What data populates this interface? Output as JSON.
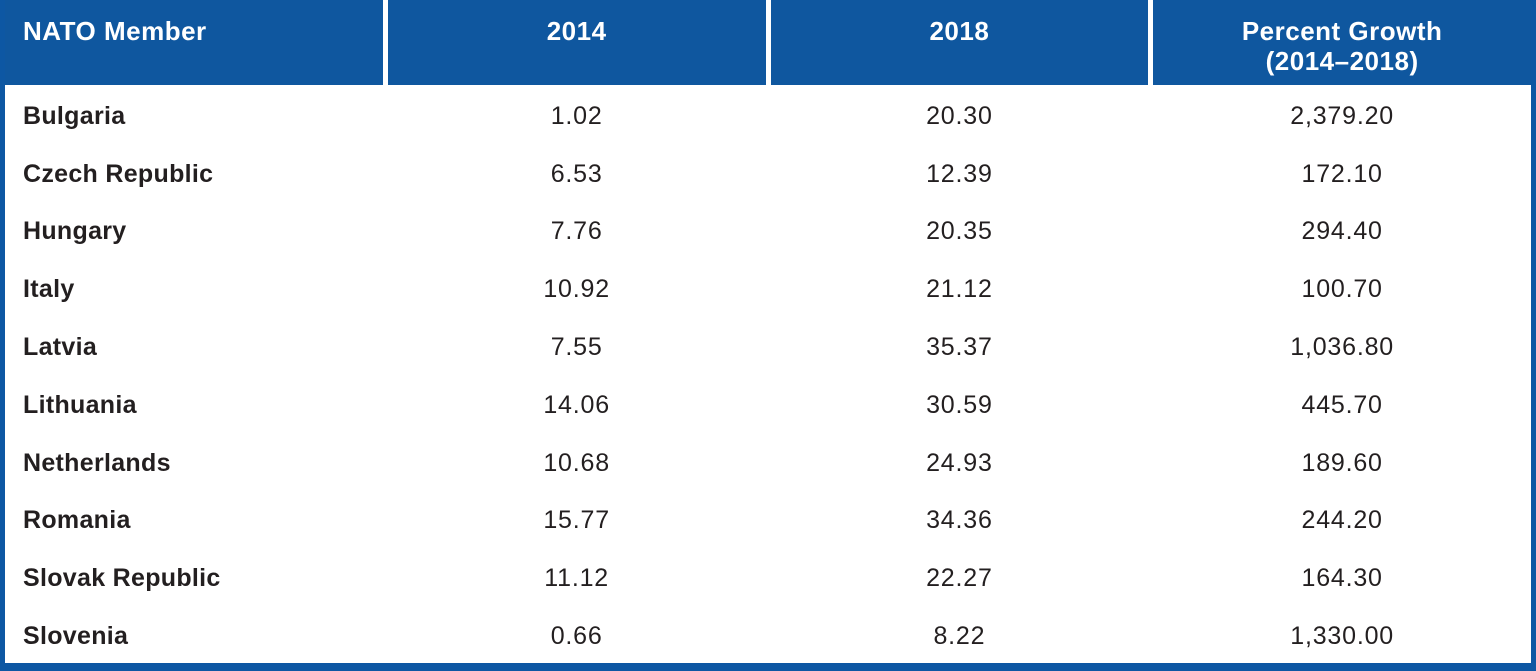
{
  "colors": {
    "border-blue": "#0d57a3",
    "header-blue": "#0f579f",
    "row-odd-blue": "#d9e1f0",
    "row-even-blue": "#9fb2d4",
    "row-odd-peach": "#f5dfd3",
    "row-even-peach": "#dba691",
    "text-dark": "#231f20"
  },
  "header": {
    "col1": "NATO Member",
    "col2": "2014",
    "col3": "2018",
    "col4_line1": "Percent Growth",
    "col4_line2": "(2014–2018)"
  },
  "chart_data": {
    "type": "table",
    "title": "NATO member defense spending growth table",
    "columns": [
      "NATO Member",
      "2014",
      "2018",
      "Percent Growth (2014–2018)"
    ],
    "rows": [
      {
        "member": "Bulgaria",
        "y2014": "1.02",
        "y2018": "20.30",
        "growth": "2,379.20"
      },
      {
        "member": "Czech Republic",
        "y2014": "6.53",
        "y2018": "12.39",
        "growth": "172.10"
      },
      {
        "member": "Hungary",
        "y2014": "7.76",
        "y2018": "20.35",
        "growth": "294.40"
      },
      {
        "member": "Italy",
        "y2014": "10.92",
        "y2018": "21.12",
        "growth": "100.70"
      },
      {
        "member": "Latvia",
        "y2014": "7.55",
        "y2018": "35.37",
        "growth": "1,036.80"
      },
      {
        "member": "Lithuania",
        "y2014": "14.06",
        "y2018": "30.59",
        "growth": "445.70"
      },
      {
        "member": "Netherlands",
        "y2014": "10.68",
        "y2018": "24.93",
        "growth": "189.60"
      },
      {
        "member": "Romania",
        "y2014": "15.77",
        "y2018": "34.36",
        "growth": "244.20"
      },
      {
        "member": "Slovak Republic",
        "y2014": "11.12",
        "y2018": "22.27",
        "growth": "164.30"
      },
      {
        "member": "Slovenia",
        "y2014": "0.66",
        "y2018": "8.22",
        "growth": "1,330.00"
      }
    ]
  }
}
